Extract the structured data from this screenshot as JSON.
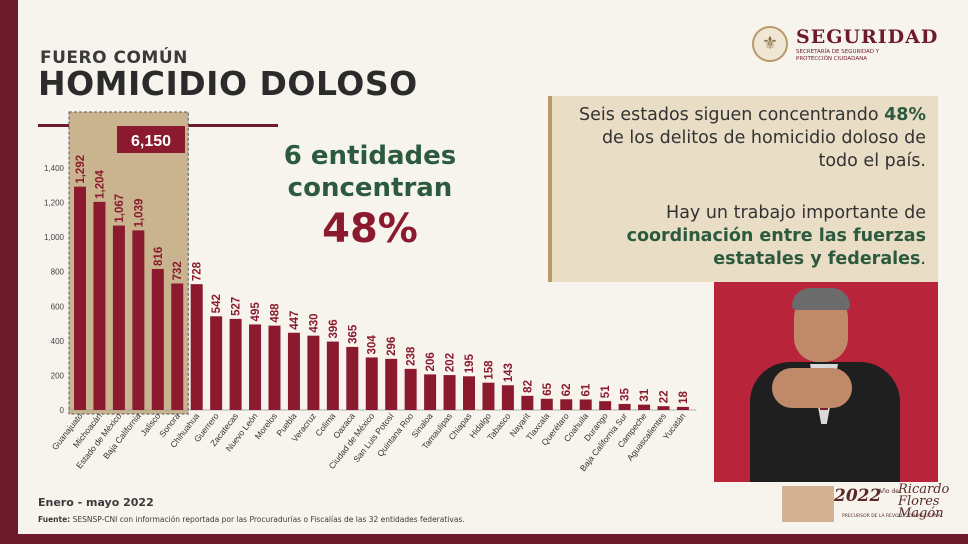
{
  "header": {
    "kicker": "FUERO COMÚN",
    "title": "HOMICIDIO DOLOSO"
  },
  "logo": {
    "brand": "SEGURIDAD",
    "subtitle": "SECRETARÍA DE SEGURIDAD Y PROTECCIÓN CIUDADANA"
  },
  "highlight": {
    "line1": "6 entidades",
    "line2": "concentran",
    "percent": "48%"
  },
  "infobox": {
    "p1_before": "Seis estados siguen concentrando ",
    "p1_bold": "48%",
    "p1_after": " de los delitos de homicidio doloso de todo el país.",
    "p2_before": "Hay un trabajo importante de ",
    "p2_bold": "coordinación entre las fuerzas estatales y federales",
    "p2_after": "."
  },
  "footer": {
    "period": "Enero - mayo 2022",
    "source_label": "Fuente:",
    "source_text": "SESNSP-CNI con información reportada por las Procuradurías o Fiscalías de las 32 entidades federativas."
  },
  "flores": {
    "year": "2022",
    "anio": "Año de",
    "name": "Ricardo Flores Magón",
    "tagline": "PRECURSOR DE LA REVOLUCIÓN MEXICANA"
  },
  "colors": {
    "bar": "#8b1a2e",
    "highlight_box": "#c9b48f",
    "total_badge": "#8b1a2e",
    "green": "#2c5a3f"
  },
  "chart_data": {
    "type": "bar",
    "categories": [
      "Guanajuato",
      "Michoacán",
      "Estado de México",
      "Baja California",
      "Jalisco",
      "Sonora",
      "Chihuahua",
      "Guerrero",
      "Zacatecas",
      "Nuevo León",
      "Morelos",
      "Puebla",
      "Veracruz",
      "Colima",
      "Oaxaca",
      "Ciudad de México",
      "San Luis Potosí",
      "Quintana Roo",
      "Sinaloa",
      "Tamaulipas",
      "Chiapas",
      "Hidalgo",
      "Tabasco",
      "Nayarit",
      "Tlaxcala",
      "Querétaro",
      "Coahuila",
      "Durango",
      "Baja California Sur",
      "Campeche",
      "Aguascalientes",
      "Yucatán"
    ],
    "values": [
      1292,
      1204,
      1067,
      1039,
      816,
      732,
      728,
      542,
      527,
      495,
      488,
      447,
      430,
      396,
      365,
      304,
      296,
      238,
      206,
      202,
      195,
      158,
      143,
      82,
      65,
      62,
      61,
      51,
      35,
      31,
      22,
      18
    ],
    "labels": [
      "1,292",
      "1,204",
      "1,067",
      "1,039",
      "816",
      "732",
      "728",
      "542",
      "527",
      "495",
      "488",
      "447",
      "430",
      "396",
      "365",
      "304",
      "296",
      "238",
      "206",
      "202",
      "195",
      "158",
      "143",
      "82",
      "65",
      "62",
      "61",
      "51",
      "35",
      "31",
      "22",
      "18"
    ],
    "yticks": [
      0,
      200,
      400,
      600,
      800,
      1000,
      1200,
      1400
    ],
    "ytick_labels": [
      "0",
      "200",
      "400",
      "600",
      "800",
      "1,000",
      "1,200",
      "1,400"
    ],
    "ylim": [
      0,
      1400
    ],
    "highlight_count": 6,
    "highlight_total": "6,150",
    "grid": false
  }
}
